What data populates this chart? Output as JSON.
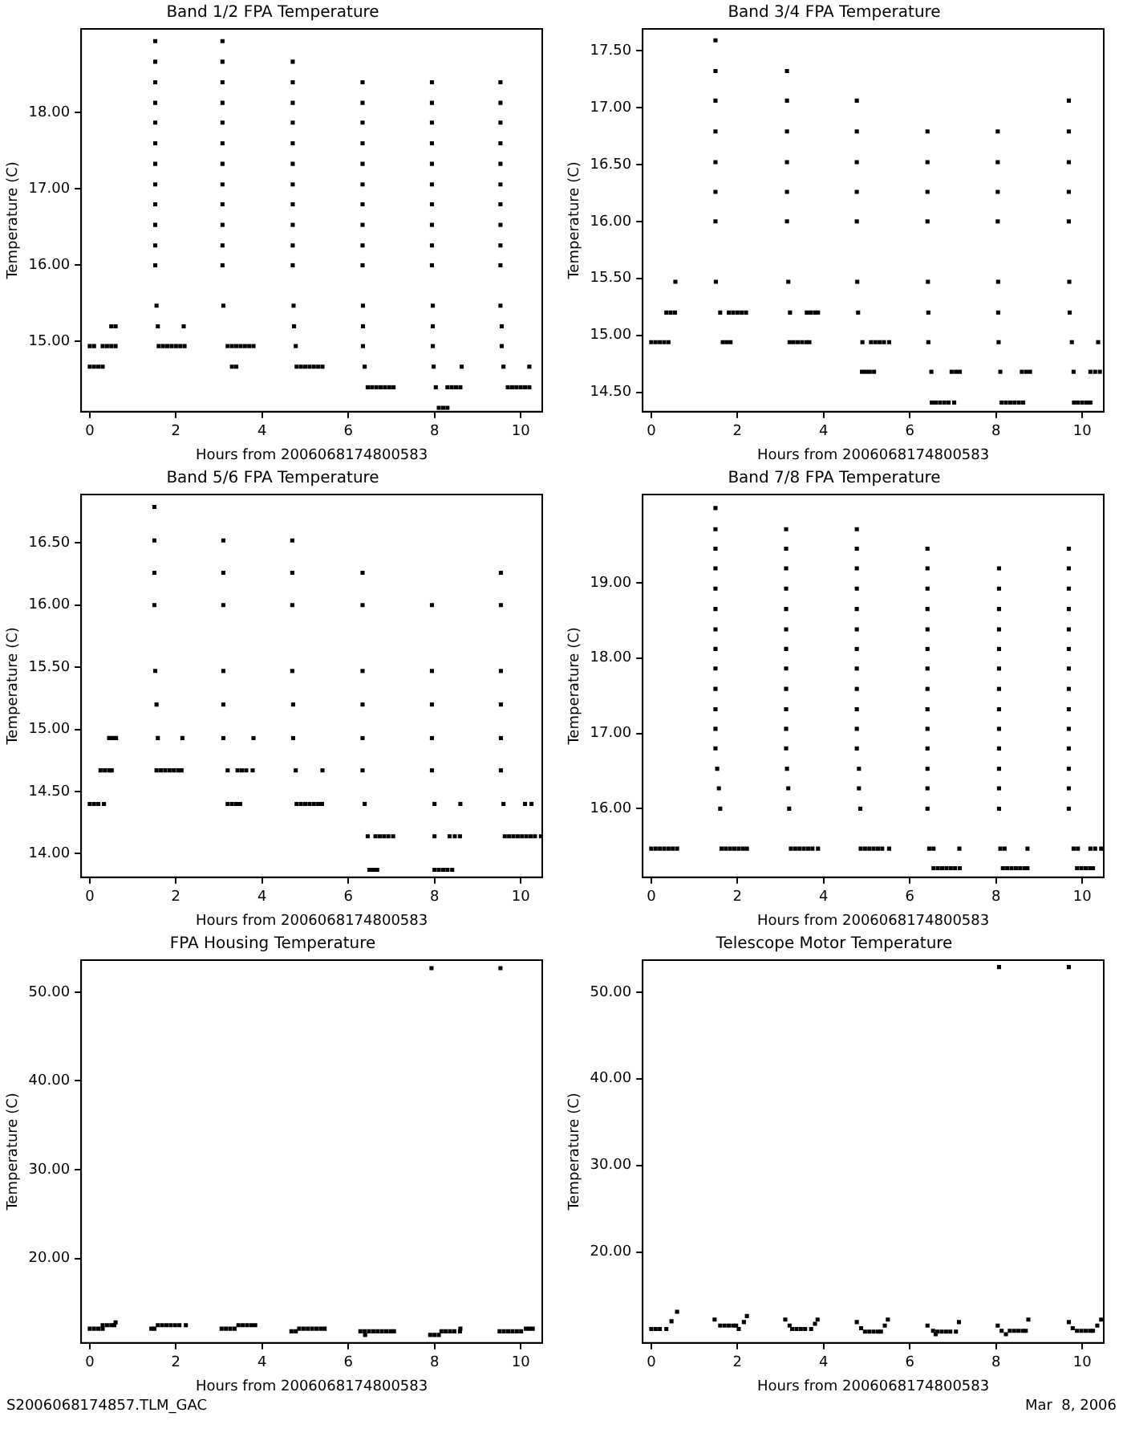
{
  "chart_data": [
    {
      "type": "scatter",
      "title": "Band 1/2 FPA Temperature",
      "xlabel": "Hours from 2006068174800583",
      "ylabel": "Temperature (C)",
      "marker": "square",
      "grid": false,
      "legend": false,
      "xlim": [
        -0.2,
        10.5
      ],
      "xticks": [
        0,
        2,
        4,
        6,
        8,
        10
      ],
      "ylim": [
        14.08,
        19.1
      ],
      "yticks": [
        {
          "value": 15,
          "label": "15.00"
        },
        {
          "value": 16,
          "label": "16.00"
        },
        {
          "value": 17,
          "label": "17.00"
        },
        {
          "value": 18,
          "label": "18.00"
        }
      ],
      "series": [
        {
          "color": "#000000",
          "x": [
            0,
            0.1,
            0.3,
            0.4,
            0.5,
            0.6,
            0,
            0.1,
            0.2,
            0.3,
            0.5,
            0.6,
            1.52,
            1.52,
            1.52,
            1.52,
            1.52,
            1.52,
            1.52,
            1.52,
            1.52,
            1.52,
            1.52,
            1.52,
            1.55,
            1.58,
            2.18,
            1.6,
            1.7,
            1.8,
            1.9,
            2,
            2.1,
            2.2,
            3.08,
            3.08,
            3.08,
            3.08,
            3.08,
            3.08,
            3.08,
            3.08,
            3.08,
            3.08,
            3.08,
            3.08,
            3.1,
            3.2,
            3.3,
            3.4,
            3.5,
            3.6,
            3.7,
            3.8,
            3.3,
            3.4,
            4.71,
            4.71,
            4.71,
            4.71,
            4.71,
            4.71,
            4.71,
            4.71,
            4.71,
            4.71,
            4.71,
            4.73,
            4.74,
            4.78,
            4.8,
            4.9,
            5,
            5.1,
            5.2,
            5.3,
            5.4,
            6.33,
            6.33,
            6.33,
            6.33,
            6.33,
            6.33,
            6.33,
            6.33,
            6.33,
            6.33,
            6.34,
            6.34,
            6.34,
            6.38,
            6.45,
            6.55,
            6.65,
            6.75,
            6.85,
            6.95,
            7.05,
            7.94,
            7.94,
            7.94,
            7.94,
            7.94,
            7.94,
            7.94,
            7.94,
            7.94,
            7.94,
            7.96,
            7.96,
            7.96,
            7.98,
            8.63,
            8.03,
            8.3,
            8.4,
            8.5,
            8.6,
            8.1,
            8.2,
            8.3,
            9.53,
            9.53,
            9.53,
            9.53,
            9.53,
            9.53,
            9.53,
            9.53,
            9.53,
            9.53,
            9.53,
            9.56,
            9.56,
            9.6,
            10.2,
            9.7,
            9.8,
            9.9,
            10,
            10.1,
            10.2
          ],
          "values": [
            14.94,
            14.94,
            14.94,
            14.94,
            14.94,
            14.94,
            14.67,
            14.67,
            14.67,
            14.67,
            15.2,
            15.2,
            16,
            16.26,
            16.53,
            16.8,
            17.06,
            17.33,
            17.6,
            17.87,
            18.13,
            18.4,
            18.67,
            18.94,
            15.47,
            15.2,
            15.2,
            14.94,
            14.94,
            14.94,
            14.94,
            14.94,
            14.94,
            14.94,
            16,
            16.26,
            16.53,
            16.8,
            17.06,
            17.33,
            17.6,
            17.87,
            18.13,
            18.4,
            18.67,
            18.94,
            15.47,
            14.94,
            14.94,
            14.94,
            14.94,
            14.94,
            14.94,
            14.94,
            14.67,
            14.67,
            16,
            16.26,
            16.53,
            16.8,
            17.06,
            17.33,
            17.6,
            17.87,
            18.13,
            18.4,
            18.67,
            15.47,
            15.2,
            14.94,
            14.67,
            14.67,
            14.67,
            14.67,
            14.67,
            14.67,
            14.67,
            16,
            16.26,
            16.53,
            16.8,
            17.06,
            17.33,
            17.6,
            17.87,
            18.13,
            18.4,
            15.47,
            15.2,
            14.94,
            14.67,
            14.4,
            14.4,
            14.4,
            14.4,
            14.4,
            14.4,
            14.4,
            16,
            16.26,
            16.53,
            16.8,
            17.06,
            17.33,
            17.6,
            17.87,
            18.13,
            18.4,
            15.47,
            15.2,
            14.94,
            14.67,
            14.67,
            14.4,
            14.4,
            14.4,
            14.4,
            14.4,
            14.13,
            14.13,
            14.13,
            16,
            16.26,
            16.53,
            16.8,
            17.06,
            17.33,
            17.6,
            17.87,
            18.13,
            18.4,
            15.47,
            15.2,
            14.94,
            14.67,
            14.67,
            14.4,
            14.4,
            14.4,
            14.4,
            14.4,
            14.4
          ]
        }
      ]
    },
    {
      "type": "scatter",
      "title": "Band 3/4 FPA Temperature",
      "xlabel": "Hours from 2006068174800583",
      "ylabel": "Temperature (C)",
      "marker": "square",
      "grid": false,
      "legend": false,
      "xlim": [
        -0.2,
        10.5
      ],
      "xticks": [
        0,
        2,
        4,
        6,
        8,
        10
      ],
      "ylim": [
        14.33,
        17.69
      ],
      "yticks": [
        {
          "value": 14.5,
          "label": "14.50"
        },
        {
          "value": 15,
          "label": "15.00"
        },
        {
          "value": 15.5,
          "label": "15.50"
        },
        {
          "value": 16,
          "label": "16.00"
        },
        {
          "value": 16.5,
          "label": "16.50"
        },
        {
          "value": 17,
          "label": "17.00"
        },
        {
          "value": 17.5,
          "label": "17.50"
        }
      ],
      "series": [
        {
          "color": "#000000",
          "x": [
            0,
            0.1,
            0.2,
            0.3,
            0.4,
            0.35,
            0.45,
            0.55,
            0.56,
            1.49,
            1.49,
            1.49,
            1.49,
            1.49,
            1.49,
            1.49,
            1.5,
            1.6,
            1.8,
            1.9,
            2,
            2.1,
            2.2,
            1.66,
            1.75,
            1.84,
            3.15,
            3.15,
            3.15,
            3.15,
            3.15,
            3.15,
            3.18,
            3.22,
            3.61,
            3.7,
            3.8,
            3.87,
            3.21,
            3.3,
            3.4,
            3.5,
            3.6,
            3.67,
            4.77,
            4.77,
            4.77,
            4.77,
            4.77,
            4.78,
            4.8,
            4.9,
            5.1,
            5.2,
            5.3,
            5.4,
            5.52,
            4.89,
            4.98,
            5.07,
            5.17,
            6.41,
            6.41,
            6.41,
            6.41,
            6.42,
            6.43,
            6.43,
            6.5,
            6.97,
            7.07,
            7.16,
            6.51,
            6.6,
            6.7,
            6.8,
            6.9,
            7.03,
            8.04,
            8.04,
            8.04,
            8.04,
            8.05,
            8.05,
            8.06,
            8.1,
            8.6,
            8.7,
            8.79,
            8.13,
            8.23,
            8.33,
            8.43,
            8.53,
            8.63,
            9.69,
            9.69,
            9.69,
            9.69,
            9.69,
            9.7,
            9.71,
            9.76,
            9.8,
            10.19,
            10.3,
            10.41,
            9.81,
            9.9,
            10,
            10.1,
            10.19,
            10.37
          ],
          "values": [
            14.94,
            14.94,
            14.94,
            14.94,
            14.94,
            15.2,
            15.2,
            15.2,
            15.47,
            16,
            16.26,
            16.52,
            16.79,
            17.06,
            17.32,
            17.59,
            15.47,
            15.2,
            15.2,
            15.2,
            15.2,
            15.2,
            15.2,
            14.94,
            14.94,
            14.94,
            16,
            16.26,
            16.52,
            16.79,
            17.06,
            17.32,
            15.47,
            15.2,
            15.2,
            15.2,
            15.2,
            15.2,
            14.94,
            14.94,
            14.94,
            14.94,
            14.94,
            14.94,
            16,
            16.26,
            16.52,
            16.79,
            17.06,
            15.47,
            15.2,
            14.94,
            14.94,
            14.94,
            14.94,
            14.94,
            14.94,
            14.68,
            14.68,
            14.68,
            14.68,
            16,
            16.26,
            16.52,
            16.79,
            15.47,
            15.2,
            14.94,
            14.68,
            14.68,
            14.68,
            14.68,
            14.41,
            14.41,
            14.41,
            14.41,
            14.41,
            14.41,
            16,
            16.26,
            16.52,
            16.79,
            15.47,
            15.2,
            14.94,
            14.68,
            14.68,
            14.68,
            14.68,
            14.41,
            14.41,
            14.41,
            14.41,
            14.41,
            14.41,
            16,
            16.26,
            16.52,
            16.79,
            17.06,
            15.47,
            15.2,
            14.94,
            14.68,
            14.68,
            14.68,
            14.68,
            14.41,
            14.41,
            14.41,
            14.41,
            14.41,
            14.94
          ]
        }
      ]
    },
    {
      "type": "scatter",
      "title": "Band 5/6 FPA Temperature",
      "xlabel": "Hours from 2006068174800583",
      "ylabel": "Temperature (C)",
      "marker": "square",
      "grid": false,
      "legend": false,
      "xlim": [
        -0.2,
        10.5
      ],
      "xticks": [
        0,
        2,
        4,
        6,
        8,
        10
      ],
      "ylim": [
        13.81,
        16.89
      ],
      "yticks": [
        {
          "value": 14,
          "label": "14.00"
        },
        {
          "value": 14.5,
          "label": "14.50"
        },
        {
          "value": 15,
          "label": "15.00"
        },
        {
          "value": 15.5,
          "label": "15.50"
        },
        {
          "value": 16,
          "label": "16.00"
        },
        {
          "value": 16.5,
          "label": "16.50"
        }
      ],
      "series": [
        {
          "color": "#000000",
          "x": [
            0,
            0.1,
            0.2,
            0.33,
            0.25,
            0.35,
            0.45,
            0.51,
            0.45,
            0.53,
            0.61,
            1.5,
            1.5,
            1.5,
            1.5,
            1.52,
            1.55,
            1.58,
            1.55,
            1.65,
            1.75,
            1.85,
            1.95,
            2.05,
            2.13,
            2.15,
            3.1,
            3.1,
            3.1,
            3.1,
            3.1,
            3.1,
            3.2,
            3.43,
            3.53,
            3.63,
            3.78,
            3.2,
            3.3,
            3.4,
            3.49,
            3.8,
            4.7,
            4.7,
            4.7,
            4.7,
            4.72,
            4.72,
            4.78,
            5.4,
            4.8,
            4.9,
            5,
            5.1,
            5.2,
            5.3,
            5.39,
            6.33,
            6.33,
            6.33,
            6.33,
            6.33,
            6.33,
            6.38,
            6.45,
            6.63,
            6.73,
            6.83,
            6.93,
            7.04,
            6.49,
            6.58,
            6.67,
            7.94,
            7.94,
            7.94,
            7.94,
            7.94,
            8,
            8.6,
            8,
            8.35,
            8.47,
            8.59,
            8,
            8.1,
            8.2,
            8.3,
            8.41,
            9.54,
            9.54,
            9.54,
            9.54,
            9.54,
            9.54,
            9.6,
            10.1,
            10.25,
            9.63,
            9.73,
            9.83,
            9.93,
            10.03,
            10.13,
            10.23,
            10.33,
            10.47
          ],
          "values": [
            14.4,
            14.4,
            14.4,
            14.4,
            14.67,
            14.67,
            14.67,
            14.67,
            14.93,
            14.93,
            14.93,
            16,
            16.26,
            16.52,
            16.79,
            15.47,
            15.2,
            14.93,
            14.67,
            14.67,
            14.67,
            14.67,
            14.67,
            14.67,
            14.67,
            14.93,
            16,
            16.26,
            16.52,
            15.47,
            15.2,
            14.93,
            14.67,
            14.67,
            14.67,
            14.67,
            14.67,
            14.4,
            14.4,
            14.4,
            14.4,
            14.93,
            16,
            16.26,
            16.52,
            15.47,
            15.2,
            14.93,
            14.67,
            14.67,
            14.4,
            14.4,
            14.4,
            14.4,
            14.4,
            14.4,
            14.4,
            16,
            16.26,
            15.47,
            15.2,
            14.93,
            14.67,
            14.4,
            14.14,
            14.14,
            14.14,
            14.14,
            14.14,
            14.14,
            13.87,
            13.87,
            13.87,
            16,
            15.47,
            15.2,
            14.93,
            14.67,
            14.4,
            14.4,
            14.14,
            14.14,
            14.14,
            14.14,
            13.87,
            13.87,
            13.87,
            13.87,
            13.87,
            16,
            16.26,
            15.47,
            15.2,
            14.93,
            14.67,
            14.4,
            14.4,
            14.4,
            14.14,
            14.14,
            14.14,
            14.14,
            14.14,
            14.14,
            14.14,
            14.14,
            14.14
          ]
        }
      ]
    },
    {
      "type": "scatter",
      "title": "Band 7/8 FPA Temperature",
      "xlabel": "Hours from 2006068174800583",
      "ylabel": "Temperature (C)",
      "marker": "square",
      "grid": false,
      "legend": false,
      "xlim": [
        -0.2,
        10.5
      ],
      "xticks": [
        0,
        2,
        4,
        6,
        8,
        10
      ],
      "ylim": [
        15.09,
        20.17
      ],
      "yticks": [
        {
          "value": 16,
          "label": "16.00"
        },
        {
          "value": 17,
          "label": "17.00"
        },
        {
          "value": 18,
          "label": "18.00"
        },
        {
          "value": 19,
          "label": "19.00"
        }
      ],
      "series": [
        {
          "color": "#000000",
          "x": [
            0,
            0.1,
            0.2,
            0.3,
            0.4,
            0.5,
            0.6,
            1.49,
            1.49,
            1.49,
            1.49,
            1.49,
            1.49,
            1.49,
            1.49,
            1.49,
            1.49,
            1.49,
            1.49,
            1.49,
            1.53,
            1.57,
            1.6,
            1.63,
            1.73,
            1.83,
            1.93,
            2.03,
            2.13,
            2.22,
            3.13,
            3.13,
            3.13,
            3.13,
            3.13,
            3.13,
            3.13,
            3.13,
            3.13,
            3.13,
            3.13,
            3.13,
            3.15,
            3.18,
            3.2,
            3.24,
            3.34,
            3.44,
            3.54,
            3.64,
            3.74,
            3.87,
            4.77,
            4.77,
            4.77,
            4.77,
            4.77,
            4.77,
            4.77,
            4.77,
            4.77,
            4.77,
            4.77,
            4.77,
            4.82,
            4.82,
            4.85,
            4.86,
            4.96,
            5.06,
            5.16,
            5.26,
            5.36,
            5.52,
            6.41,
            6.41,
            6.41,
            6.41,
            6.41,
            6.41,
            6.41,
            6.41,
            6.41,
            6.41,
            6.41,
            6.41,
            6.41,
            6.41,
            6.45,
            6.55,
            7.15,
            6.55,
            6.65,
            6.75,
            6.85,
            6.95,
            7.05,
            7.16,
            8.07,
            8.07,
            8.07,
            8.07,
            8.07,
            8.07,
            8.07,
            8.07,
            8.07,
            8.07,
            8.07,
            8.07,
            8.07,
            8.1,
            8.2,
            8.73,
            8.16,
            8.26,
            8.36,
            8.46,
            8.56,
            8.66,
            8.73,
            9.69,
            9.69,
            9.69,
            9.69,
            9.69,
            9.69,
            9.69,
            9.69,
            9.69,
            9.69,
            9.69,
            9.69,
            9.69,
            9.69,
            9.8,
            9.9,
            10.19,
            10.3,
            10.44,
            9.88,
            9.98,
            10.08,
            10.18,
            10.25
          ],
          "values": [
            15.47,
            15.47,
            15.47,
            15.47,
            15.47,
            15.47,
            15.47,
            16.8,
            17.06,
            17.32,
            17.59,
            17.86,
            18.12,
            18.38,
            18.65,
            18.92,
            19.19,
            19.45,
            19.71,
            19.99,
            16.53,
            16.27,
            16,
            15.47,
            15.47,
            15.47,
            15.47,
            15.47,
            15.47,
            15.47,
            16.8,
            17.06,
            17.32,
            17.59,
            17.86,
            18.12,
            18.38,
            18.65,
            18.92,
            19.19,
            19.45,
            19.71,
            16.53,
            16.27,
            16,
            15.47,
            15.47,
            15.47,
            15.47,
            15.47,
            15.47,
            15.47,
            16.8,
            17.06,
            17.32,
            17.59,
            17.86,
            18.12,
            18.38,
            18.65,
            18.92,
            19.19,
            19.45,
            19.71,
            16.53,
            16.27,
            16,
            15.47,
            15.47,
            15.47,
            15.47,
            15.47,
            15.47,
            15.47,
            16,
            16.27,
            16.53,
            16.8,
            17.06,
            17.32,
            17.59,
            17.86,
            18.12,
            18.38,
            18.65,
            18.92,
            19.19,
            19.45,
            15.47,
            15.47,
            15.47,
            15.21,
            15.21,
            15.21,
            15.21,
            15.21,
            15.21,
            15.21,
            16,
            16.27,
            16.53,
            16.8,
            17.06,
            17.32,
            17.59,
            17.86,
            18.12,
            18.38,
            18.65,
            18.92,
            19.19,
            15.47,
            15.47,
            15.47,
            15.21,
            15.21,
            15.21,
            15.21,
            15.21,
            15.21,
            15.21,
            16,
            16.27,
            16.53,
            16.8,
            17.06,
            17.32,
            17.59,
            17.86,
            18.12,
            18.38,
            18.65,
            18.92,
            19.19,
            19.45,
            15.47,
            15.47,
            15.47,
            15.47,
            15.47,
            15.21,
            15.21,
            15.21,
            15.21,
            15.21
          ]
        }
      ]
    },
    {
      "type": "scatter",
      "title": "FPA Housing Temperature",
      "xlabel": "Hours from 2006068174800583",
      "ylabel": "Temperature (C)",
      "marker": "square",
      "grid": false,
      "legend": false,
      "xlim": [
        -0.2,
        10.5
      ],
      "xticks": [
        0,
        2,
        4,
        6,
        8,
        10
      ],
      "ylim": [
        10.5,
        53.6
      ],
      "yticks": [
        {
          "value": 20,
          "label": "20.00"
        },
        {
          "value": 30,
          "label": "30.00"
        },
        {
          "value": 40,
          "label": "40.00"
        },
        {
          "value": 50,
          "label": "50.00"
        }
      ],
      "annotations": [
        "S2006068174857.TLM_GAC"
      ],
      "series": [
        {
          "color": "#000000",
          "x": [
            0,
            0.1,
            0.2,
            0.3,
            0.3,
            0.4,
            0.5,
            0.57,
            0.6,
            1.43,
            1.5,
            1.58,
            1.68,
            1.78,
            1.88,
            1.98,
            2.08,
            2.23,
            3.06,
            3.16,
            3.26,
            3.36,
            3.45,
            3.55,
            3.65,
            3.75,
            3.84,
            4.68,
            4.78,
            4.86,
            4.96,
            5.06,
            5.16,
            5.26,
            5.36,
            5.45,
            6.28,
            6.38,
            6.48,
            6.58,
            6.68,
            6.78,
            6.88,
            6.98,
            7.06,
            6.39,
            7.9,
            8,
            8.1,
            8.16,
            8.26,
            8.36,
            8.46,
            8.59,
            8.6,
            7.93,
            9.51,
            9.61,
            9.71,
            9.81,
            9.91,
            10.01,
            10.12,
            10.2,
            10.28,
            9.53
          ],
          "values": [
            12.1,
            12.1,
            12.1,
            12.1,
            12.5,
            12.5,
            12.5,
            12.5,
            12.8,
            12.1,
            12.1,
            12.5,
            12.5,
            12.5,
            12.5,
            12.5,
            12.5,
            12.5,
            12.1,
            12.1,
            12.1,
            12.1,
            12.5,
            12.5,
            12.5,
            12.5,
            12.5,
            11.8,
            11.8,
            12.1,
            12.1,
            12.1,
            12.1,
            12.1,
            12.1,
            12.1,
            11.8,
            11.8,
            11.8,
            11.8,
            11.8,
            11.8,
            11.8,
            11.8,
            11.8,
            11.4,
            11.4,
            11.4,
            11.4,
            11.8,
            11.8,
            11.8,
            11.8,
            11.8,
            12.1,
            52.7,
            11.8,
            11.8,
            11.8,
            11.8,
            11.8,
            11.8,
            12.1,
            12.1,
            12.1,
            52.7
          ]
        }
      ]
    },
    {
      "type": "scatter",
      "title": "Telescope Motor Temperature",
      "xlabel": "Hours from 2006068174800583",
      "ylabel": "Temperature (C)",
      "marker": "square",
      "grid": false,
      "legend": false,
      "xlim": [
        -0.2,
        10.5
      ],
      "xticks": [
        0,
        2,
        4,
        6,
        8,
        10
      ],
      "ylim": [
        9.5,
        53.7
      ],
      "yticks": [
        {
          "value": 20,
          "label": "20.00"
        },
        {
          "value": 30,
          "label": "30.00"
        },
        {
          "value": 40,
          "label": "40.00"
        },
        {
          "value": 50,
          "label": "50.00"
        }
      ],
      "annotations": [
        "Mar  8, 2006"
      ],
      "series": [
        {
          "color": "#000000",
          "x": [
            0,
            0.1,
            0.2,
            0.35,
            0.47,
            0.6,
            1.47,
            1.6,
            1.7,
            1.8,
            1.9,
            1.97,
            2.03,
            2.15,
            2.22,
            3.11,
            3.21,
            3.27,
            3.37,
            3.47,
            3.57,
            3.71,
            3.8,
            3.86,
            4.77,
            4.87,
            4.96,
            5.06,
            5.16,
            5.26,
            5.33,
            5.42,
            5.49,
            6.41,
            6.54,
            6.6,
            6.64,
            6.74,
            6.84,
            6.94,
            7.07,
            7.14,
            8.04,
            8.13,
            8.23,
            8.32,
            8.42,
            8.52,
            8.62,
            8.69,
            8.75,
            8.07,
            9.69,
            9.78,
            9.88,
            9.98,
            10.08,
            10.18,
            10.25,
            10.35,
            10.44,
            9.69
          ],
          "values": [
            11.1,
            11.1,
            11.1,
            11.1,
            12,
            13.1,
            12.2,
            11.5,
            11.5,
            11.5,
            11.5,
            11.5,
            11.1,
            11.9,
            12.6,
            12.2,
            11.5,
            11.1,
            11.1,
            11.1,
            11.1,
            11.1,
            11.7,
            12.2,
            11.9,
            11.2,
            10.8,
            10.8,
            10.8,
            10.8,
            10.8,
            11.5,
            12.2,
            11.5,
            10.9,
            10.5,
            10.8,
            10.8,
            10.8,
            10.8,
            10.8,
            11.9,
            11.5,
            10.9,
            10.5,
            10.9,
            10.9,
            10.9,
            10.9,
            10.9,
            12.2,
            52.9,
            11.9,
            11.2,
            10.9,
            10.9,
            10.9,
            10.9,
            10.9,
            11.5,
            12.2,
            52.9
          ]
        }
      ]
    }
  ]
}
